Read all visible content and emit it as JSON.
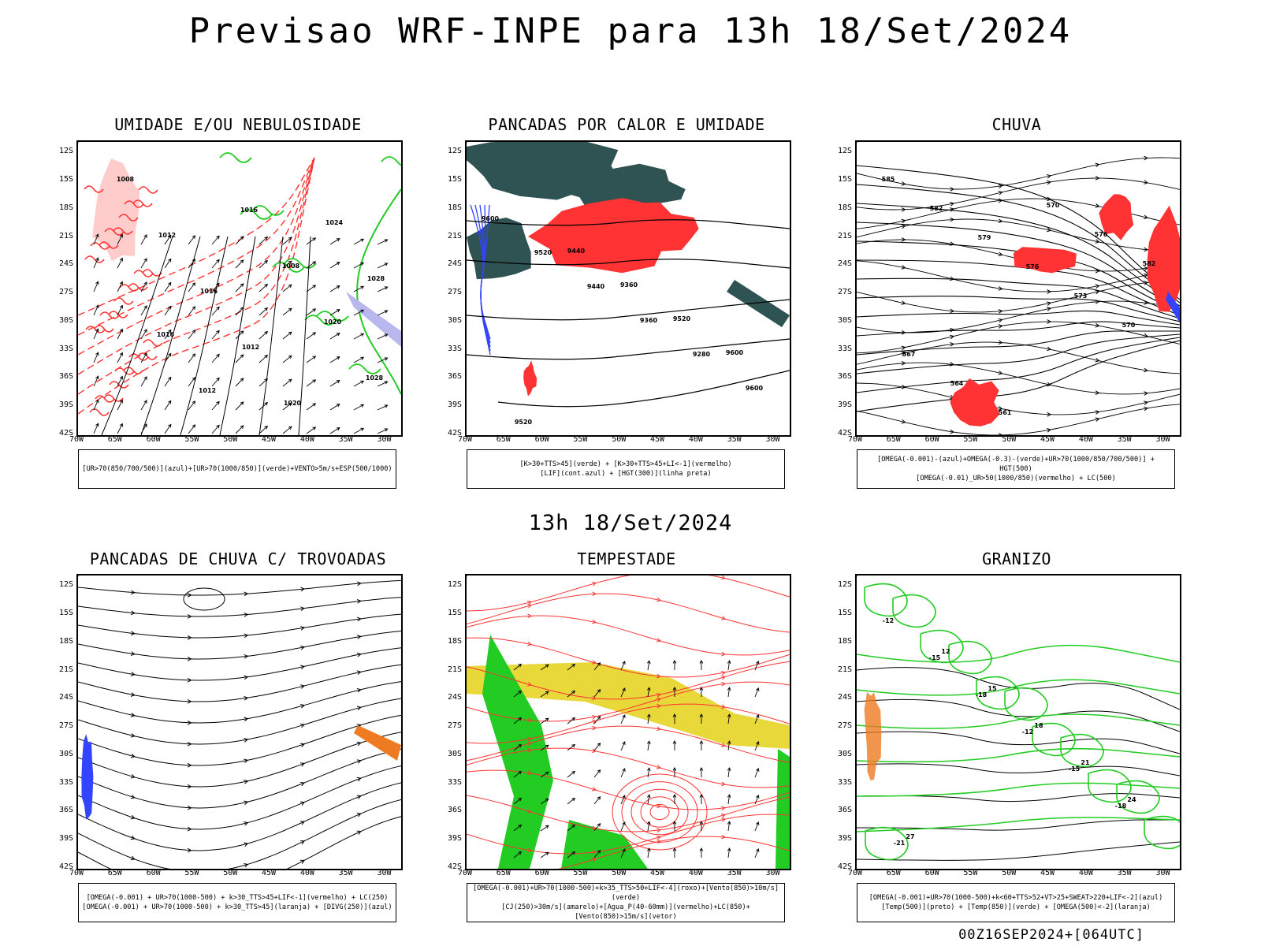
{
  "title": "Previsao WRF-INPE  para 13h 18/Set/2024",
  "mid_title": "13h 18/Set/2024",
  "footer": "00Z16SEP2024+[064UTC]",
  "latitudes": [
    "12S",
    "15S",
    "18S",
    "21S",
    "24S",
    "27S",
    "30S",
    "33S",
    "36S",
    "39S",
    "42S"
  ],
  "longitudes": [
    "70W",
    "65W",
    "60W",
    "55W",
    "50W",
    "45W",
    "40W",
    "35W",
    "30W"
  ],
  "colors": {
    "red": "#ff3333",
    "green": "#22cc22",
    "blue": "#3344ff",
    "dark_teal": "#2f5252",
    "yellow": "#e8d83a",
    "orange": "#ee7a22",
    "lavender": "#b8b8ee",
    "gray": "#555555"
  },
  "panels": [
    {
      "id": "umidade",
      "title": "UMIDADE E/OU NEBULOSIDADE",
      "legend": [
        "[UR>70(850/700/500)](azul)+[UR>70(1000/850)](verde)+VENTO>5m/s+ESP(500/1000)"
      ],
      "contour_labels": [
        "1008",
        "1012",
        "1016",
        "1012",
        "1020",
        "1024",
        "1028",
        "1016",
        "1012",
        "1016",
        "1008",
        "1020",
        "1028"
      ]
    },
    {
      "id": "pancadas_calor",
      "title": "PANCADAS POR CALOR E UMIDADE",
      "legend": [
        "[K>30+TTS>45](verde) + [K>30+TTS>45+LI<-1](vermelho)",
        "[LIF](cont.azul) + [HGT(300)](linha preta)"
      ],
      "contour_labels": [
        "9600",
        "9520",
        "9440",
        "9360",
        "9280",
        "9600",
        "9520",
        "9440",
        "9360",
        "9520",
        "9600"
      ]
    },
    {
      "id": "chuva",
      "title": "CHUVA",
      "legend": [
        "[OMEGA(-0.001)-(azul)+OMEGA(-0.3)-(verde)+UR>70(1000/850/700/500)] + HGT(500)",
        "[OMEGA(-0.01)_UR>50(1000/850)(vermelho) + LC(500)"
      ],
      "contour_labels": [
        "585",
        "582",
        "579",
        "576",
        "573",
        "570",
        "567",
        "564",
        "561",
        "570",
        "576",
        "582"
      ]
    },
    {
      "id": "trovoadas",
      "title": "PANCADAS DE CHUVA C/ TROVOADAS",
      "legend": [
        "[OMEGA(-0.001) + UR>70(1000-500) + k>30_TTS>45+LIF<-1](vermelho) + LC(250)",
        "[OMEGA(-0.001) + UR>70(1000-500) + k>30_TTS>45](laranja) + [DIVG(250)](azul)"
      ],
      "contour_labels": []
    },
    {
      "id": "tempestade",
      "title": "TEMPESTADE",
      "legend": [
        "[OMEGA(-0.001)+UR>70(1000-500)+k>35_TTS>50+LIF<-4](roxo)+[Vento(850)>10m/s](verde)",
        "[CJ(250)>30m/s](amarelo)+[Agua_P(40-60mm)](vermelho)+LC(850)+[Vento(850)>15m/s](vetor)"
      ],
      "contour_labels": []
    },
    {
      "id": "granizo",
      "title": "GRANIZO",
      "legend": [
        "[OMEGA(-0.001)+UR>70(1000-500)+k<60+TTS>52+VT>25+SWEAT>220+LIF<-2](azul)",
        "[Temp(500)](preto) + [Temp(850)](verde) + [OMEGA(500)<-2](laranja)"
      ],
      "contour_labels": [
        "-12",
        "-15",
        "-18",
        "-12",
        "-15",
        "-18",
        "-21",
        "12",
        "15",
        "18",
        "21",
        "24",
        "27"
      ]
    }
  ]
}
